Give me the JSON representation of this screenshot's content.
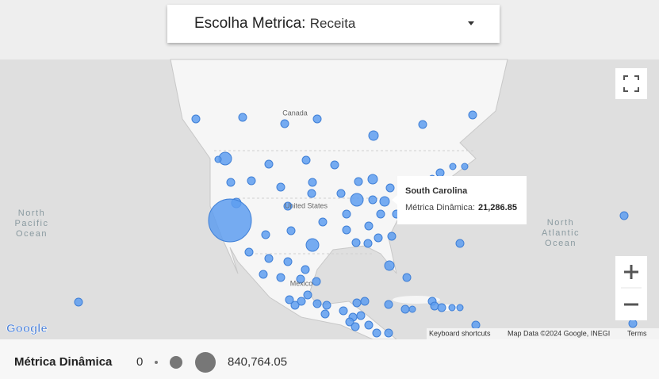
{
  "dropdown": {
    "label": "Escolha Metrica:",
    "value": "Receita"
  },
  "map": {
    "labels": [
      "Canada",
      "United States",
      "Mexico"
    ],
    "oceans": [
      [
        "North",
        "Pacific",
        "Ocean"
      ],
      [
        "North",
        "Atlantic",
        "Ocean"
      ]
    ],
    "logo": "Google",
    "footer": [
      "Keyboard shortcuts",
      "Map Data ©2024 Google, INEGI",
      "Terms"
    ]
  },
  "tooltip": {
    "title": "South Carolina",
    "label": "Métrica Dinâmica:",
    "value": "21,286.85"
  },
  "legend": {
    "title": "Métrica Dinâmica",
    "min": "0",
    "max": "840,764.05"
  }
}
